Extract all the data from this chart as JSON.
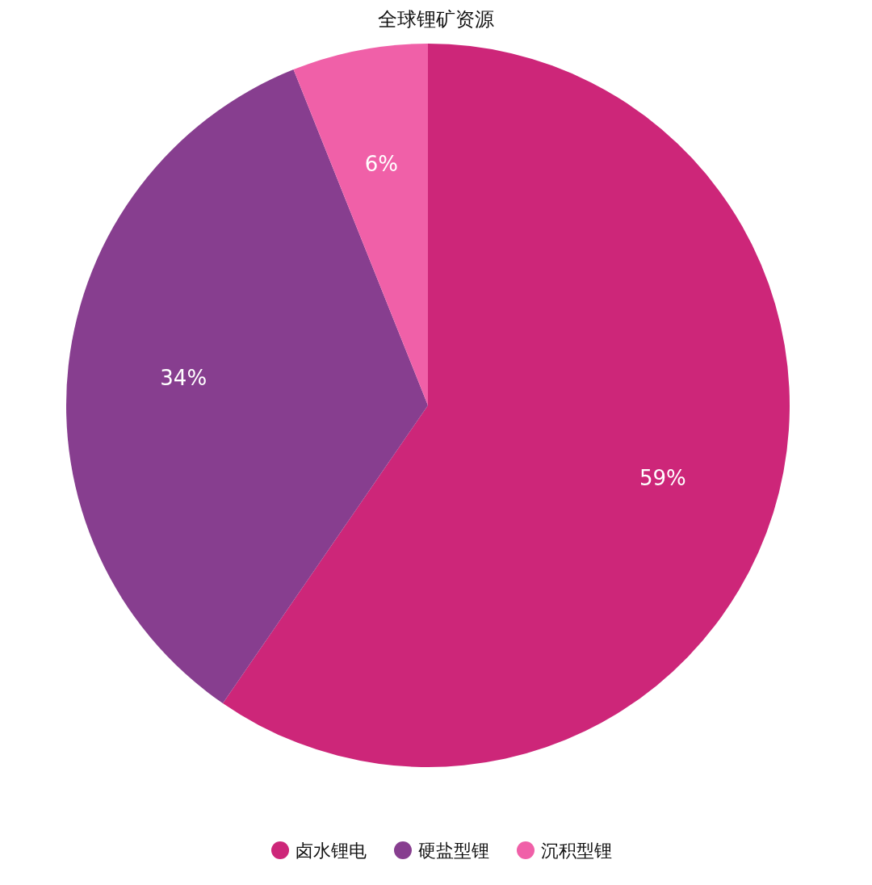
{
  "chart_data": {
    "type": "pie",
    "title": "全球锂矿资源",
    "categories": [
      "卤水锂电",
      "硬盐型锂",
      "沉积型锂"
    ],
    "values": [
      59,
      34,
      6
    ],
    "colors": [
      "#cd2679",
      "#873e8f",
      "#f060a8"
    ],
    "value_labels": [
      "59%",
      "34%",
      "6%"
    ],
    "legend": "bottom"
  }
}
